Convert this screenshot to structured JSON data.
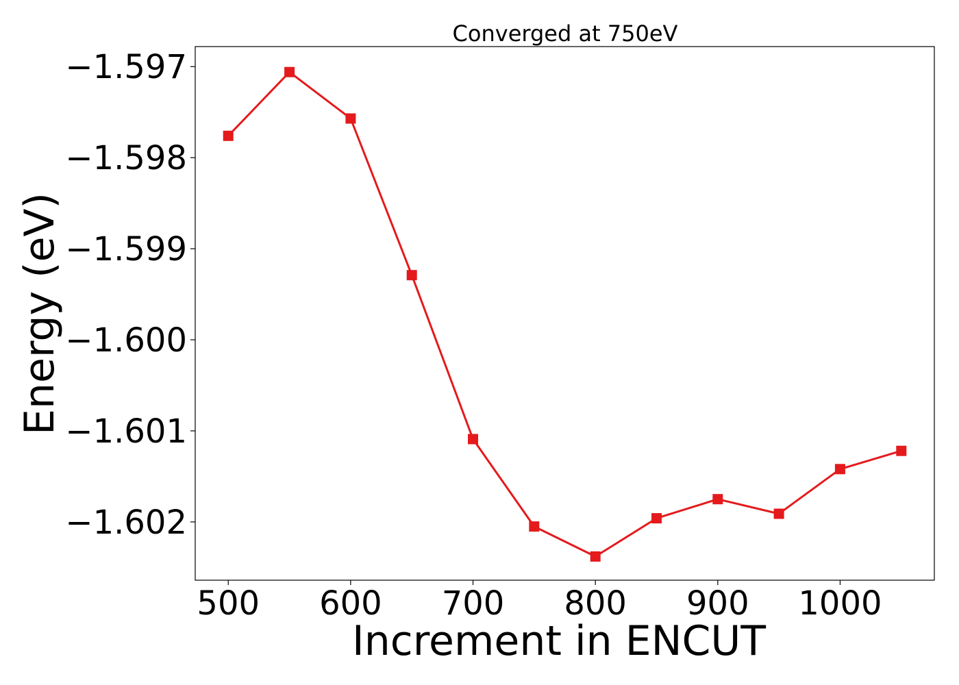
{
  "chart_data": {
    "type": "line",
    "title": "Converged at 750eV",
    "xlabel": "Increment in ENCUT",
    "ylabel": "Energy (eV)",
    "x": [
      500,
      550,
      600,
      650,
      700,
      750,
      800,
      850,
      900,
      950,
      1000,
      1050
    ],
    "series": [
      {
        "values": [
          -1.59776,
          -1.59706,
          -1.59757,
          -1.59929,
          -1.60109,
          -1.60205,
          -1.60238,
          -1.60196,
          -1.60175,
          -1.60191,
          -1.60142,
          -1.60122
        ],
        "color": "#e41a1c",
        "marker": "square"
      }
    ],
    "xlim": [
      473,
      1077
    ],
    "ylim": [
      -1.60264,
      -1.59678
    ],
    "xticks": [
      500,
      600,
      700,
      800,
      900,
      1000
    ],
    "xtick_labels": [
      "500",
      "600",
      "700",
      "800",
      "900",
      "1000"
    ],
    "yticks": [
      -1.597,
      -1.598,
      -1.599,
      -1.6,
      -1.601,
      -1.602
    ],
    "ytick_labels": [
      "−1.597",
      "−1.598",
      "−1.599",
      "−1.600",
      "−1.601",
      "−1.602"
    ],
    "grid": false,
    "legend": false
  }
}
